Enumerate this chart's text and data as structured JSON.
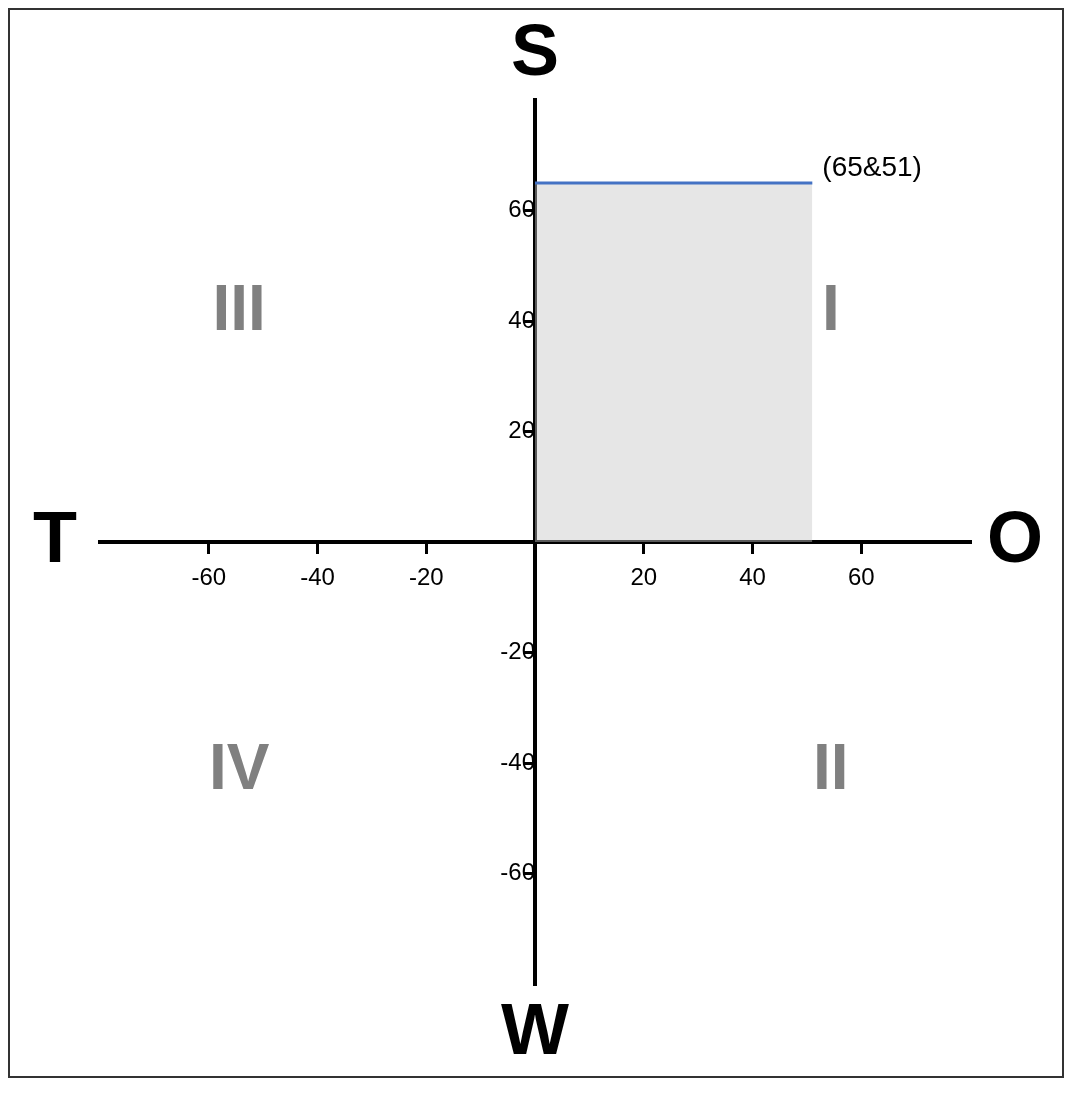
{
  "chart_data": {
    "type": "area",
    "xlabel": "O",
    "ylabel": "S",
    "x": [
      0,
      51
    ],
    "series": [
      {
        "color": "#4472c4",
        "values": [
          65,
          65
        ]
      }
    ],
    "xlim": [
      -80,
      80
    ],
    "ylim": [
      -80,
      80
    ],
    "xticks": [
      -60,
      -40,
      -20,
      20,
      40,
      60
    ],
    "yticks": [
      -60,
      -40,
      -20,
      20,
      40,
      60
    ],
    "grid": false,
    "legend": false,
    "marker": "none",
    "annotations": [
      {
        "text": "(65&51)",
        "x": 51,
        "y": 65
      },
      "W",
      "T",
      "I",
      "II",
      "III",
      "IV"
    ]
  }
}
